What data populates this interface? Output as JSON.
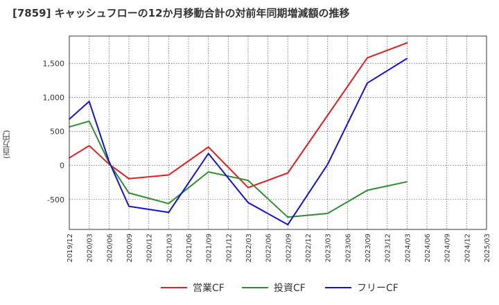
{
  "chart_data": {
    "type": "line",
    "title": "[7859]  キャッシュフローの12か月移動合計の対前年同期増減額の推移",
    "ylabel": "(百万円)",
    "xlabel": "",
    "x": [
      "2019/12",
      "2020/03",
      "2020/06",
      "2020/09",
      "2020/12",
      "2021/03",
      "2021/06",
      "2021/09",
      "2021/12",
      "2022/03",
      "2022/06",
      "2022/09",
      "2022/12",
      "2023/03",
      "2023/06",
      "2023/09",
      "2023/12",
      "2024/03",
      "2024/06",
      "2024/09",
      "2024/12",
      "2025/03"
    ],
    "ylim": [
      -940,
      1900
    ],
    "yticks": [
      -500,
      0,
      500,
      1000,
      1500
    ],
    "ytick_labels": [
      "-500",
      "0",
      "500",
      "1,000",
      "1,500"
    ],
    "grid": true,
    "legend_position": "bottom",
    "series": [
      {
        "name": "営業CF",
        "color": "#e41a1c",
        "values": [
          110,
          290,
          20,
          -195,
          null,
          -140,
          null,
          270,
          null,
          -325,
          null,
          -110,
          null,
          null,
          null,
          1580,
          null,
          1800,
          null,
          null,
          null,
          null
        ]
      },
      {
        "name": "投資CF",
        "color": "#2e8b2e",
        "values": [
          565,
          650,
          40,
          -405,
          null,
          -560,
          null,
          -95,
          null,
          -220,
          null,
          -760,
          null,
          -705,
          null,
          -365,
          null,
          -240,
          null,
          null,
          null,
          null
        ]
      },
      {
        "name": "フリーCF",
        "color": "#1010e0",
        "values": [
          680,
          940,
          60,
          -600,
          null,
          -690,
          null,
          175,
          null,
          -545,
          null,
          -870,
          null,
          15,
          null,
          1210,
          null,
          1570,
          null,
          null,
          null,
          null
        ]
      }
    ]
  }
}
